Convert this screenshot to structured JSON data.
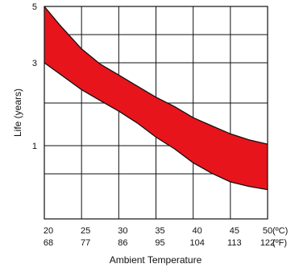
{
  "chart_data": {
    "type": "area",
    "title": "",
    "xlabel": "Ambient Temperature",
    "ylabel": "Life (years)",
    "x_ticks_c": [
      "20",
      "25",
      "30",
      "35",
      "40",
      "45",
      "50"
    ],
    "x_ticks_f": [
      "68",
      "77",
      "86",
      "95",
      "104",
      "113",
      "122"
    ],
    "x_unit_c": "(ºC)",
    "x_unit_f": "(ºF)",
    "y_ticks": [
      "5",
      "3",
      "1"
    ],
    "xlim": [
      20,
      50
    ],
    "grid": true,
    "band_color": "#e8141c",
    "series": [
      {
        "role": "upper",
        "x": [
          20,
          22,
          25,
          27.5,
          30,
          32.5,
          35,
          37.5,
          40,
          42.5,
          45,
          47.5,
          50
        ],
        "y": [
          5.0,
          4.25,
          3.4,
          2.95,
          2.55,
          2.2,
          1.9,
          1.68,
          1.45,
          1.3,
          1.17,
          1.08,
          1.02
        ]
      },
      {
        "role": "lower",
        "x": [
          20,
          22,
          25,
          27.5,
          30,
          32.5,
          35,
          37.5,
          40,
          42.5,
          45,
          47.5,
          50
        ],
        "y": [
          3.0,
          2.6,
          2.1,
          1.82,
          1.58,
          1.35,
          1.12,
          0.97,
          0.85,
          0.77,
          0.71,
          0.68,
          0.66
        ]
      }
    ]
  }
}
